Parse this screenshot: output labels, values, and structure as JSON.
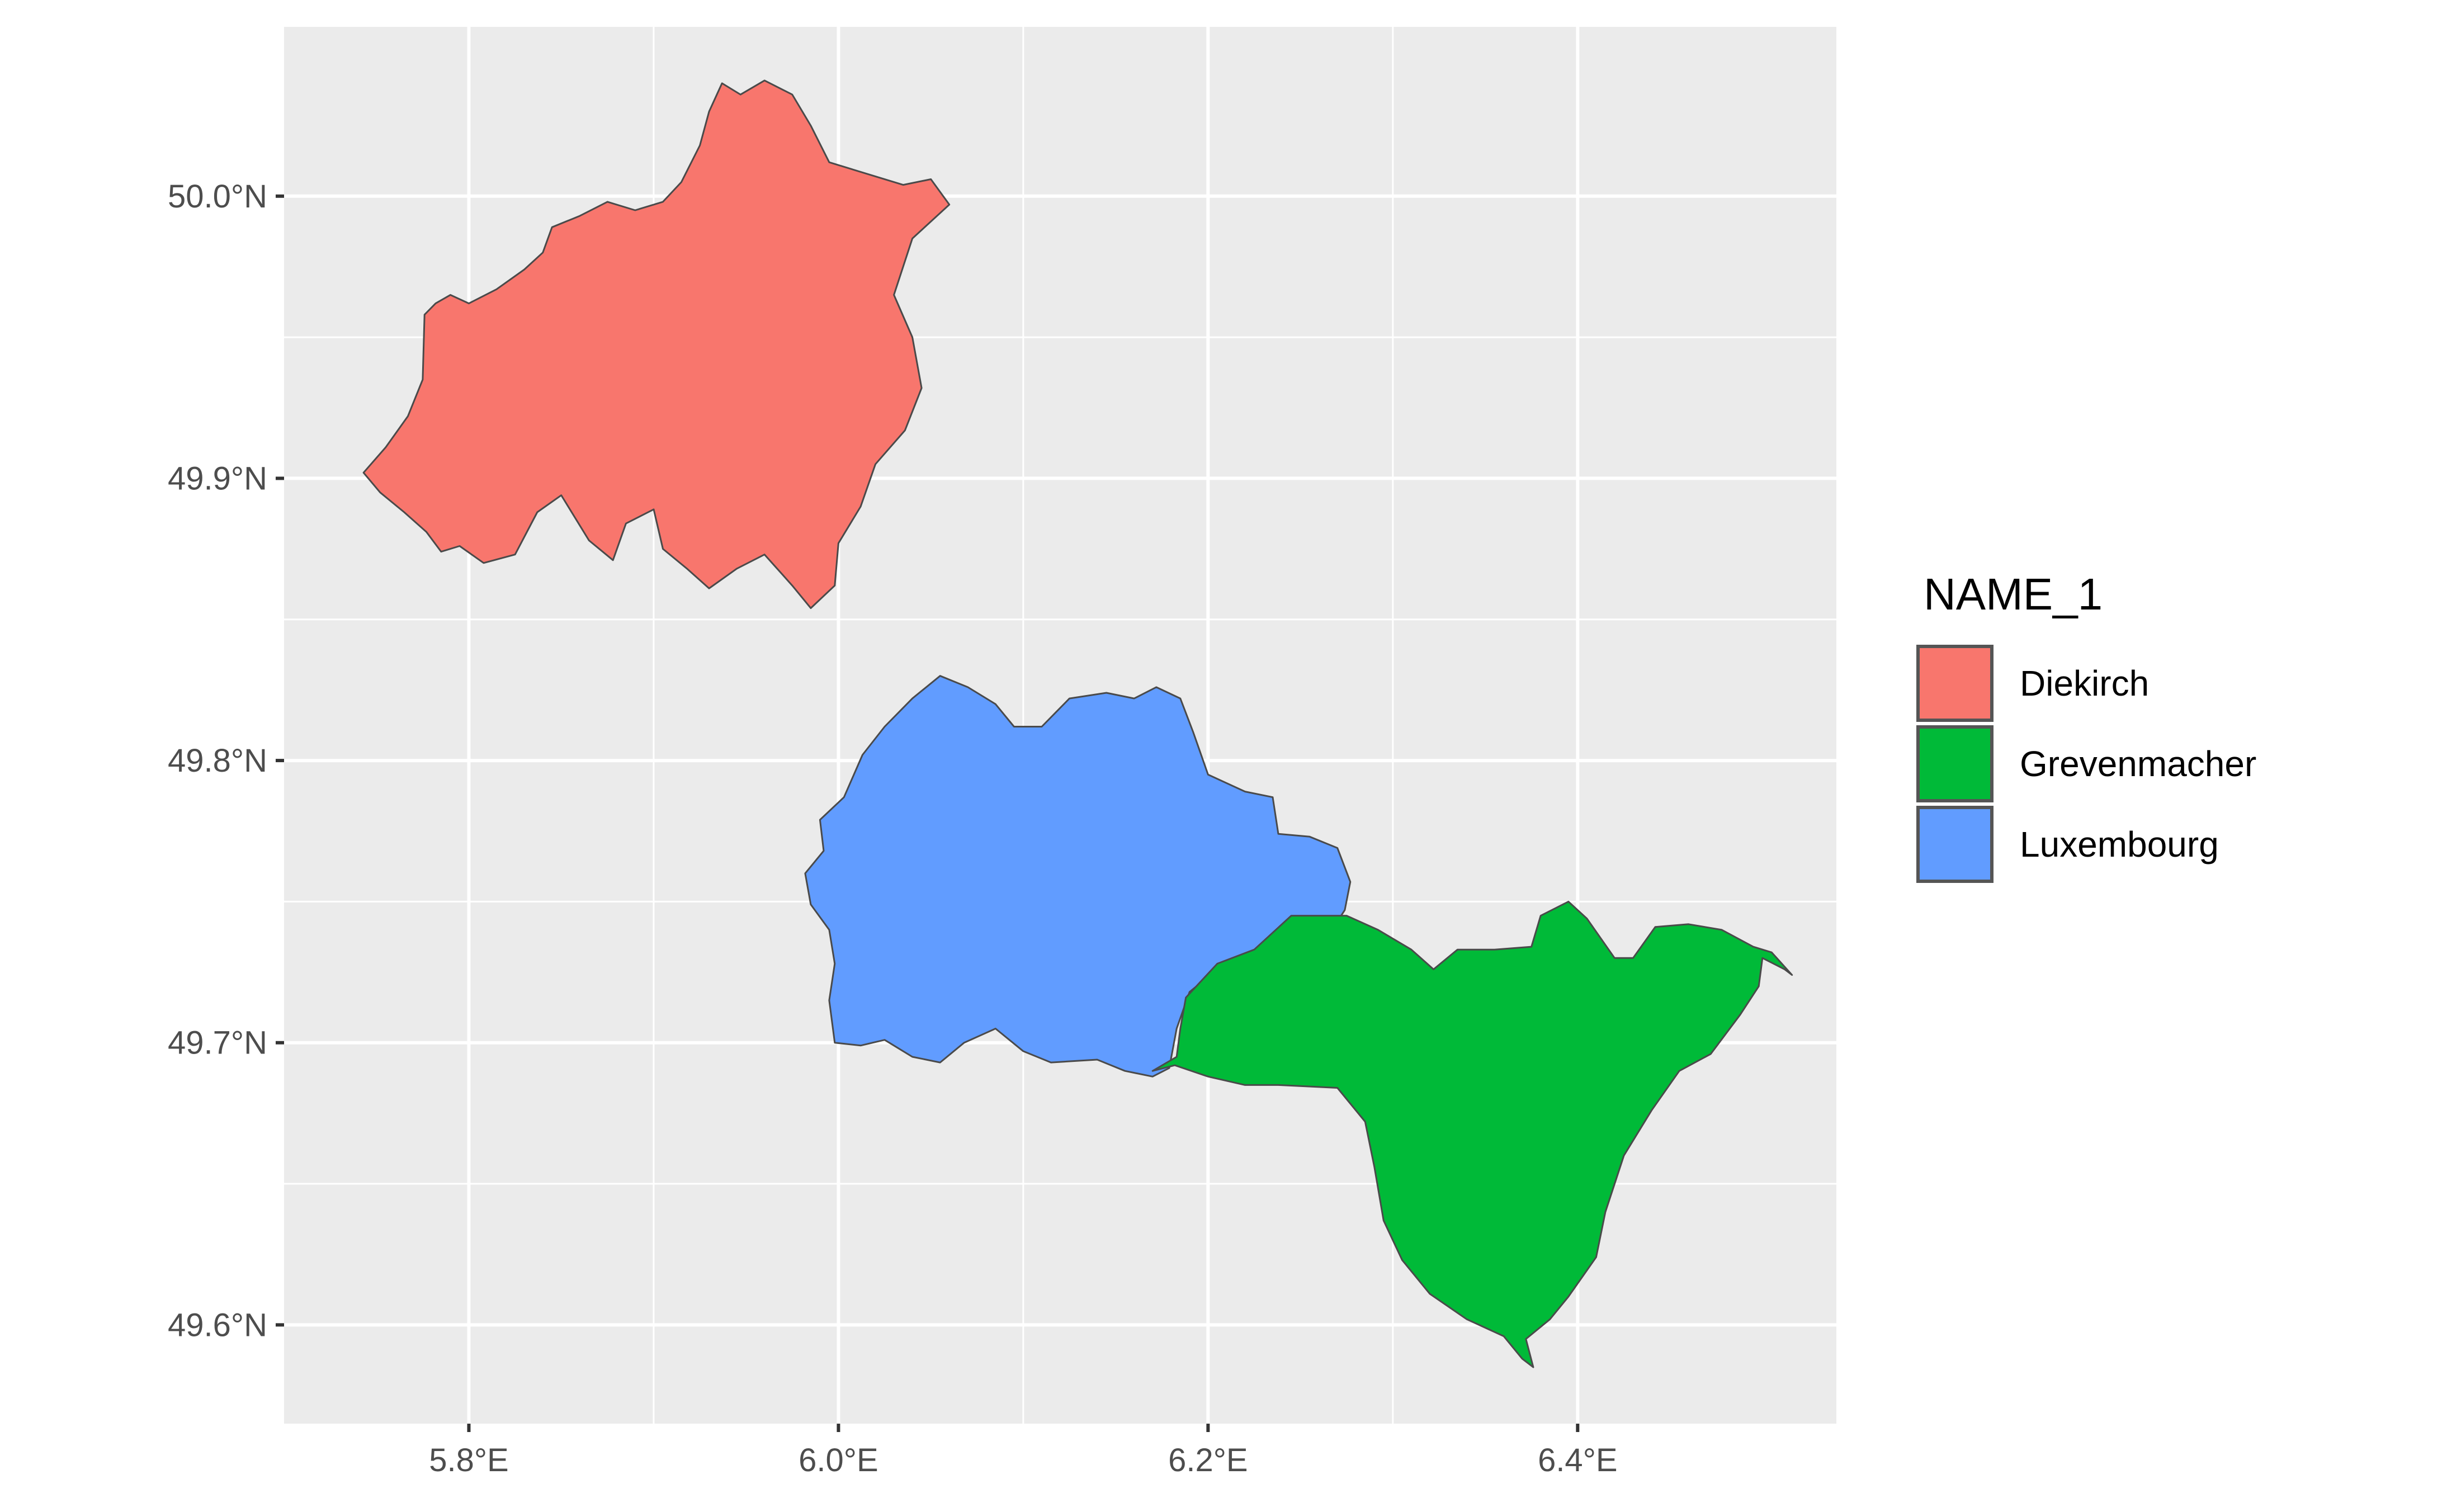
{
  "chart_data": {
    "type": "map",
    "projection": "longitude/latitude",
    "xlim": [
      5.7,
      6.54
    ],
    "ylim": [
      49.565,
      50.06
    ],
    "x_ticks": [
      5.8,
      6.0,
      6.2,
      6.4
    ],
    "y_ticks": [
      49.6,
      49.7,
      49.8,
      49.9,
      50.0
    ],
    "x_tick_labels": [
      "5.8°E",
      "6.0°E",
      "6.2°E",
      "6.4°E"
    ],
    "y_tick_labels": [
      "49.6°N",
      "49.7°N",
      "49.8°N",
      "49.9°N",
      "50.0°N"
    ],
    "grid": true,
    "panel_background": "#ebebeb",
    "legend": {
      "title": "NAME_1",
      "placement": "right",
      "entries": [
        {
          "label": "Diekirch",
          "color": "#F8766D"
        },
        {
          "label": "Grevenmacher",
          "color": "#00BA38"
        },
        {
          "label": "Luxembourg",
          "color": "#619CFF"
        }
      ]
    },
    "regions": [
      {
        "name": "Diekirch",
        "color": "#F8766D",
        "boundary": [
          [
            5.743,
            49.902
          ],
          [
            5.755,
            49.911
          ],
          [
            5.767,
            49.922
          ],
          [
            5.775,
            49.935
          ],
          [
            5.776,
            49.958
          ],
          [
            5.782,
            49.962
          ],
          [
            5.79,
            49.965
          ],
          [
            5.8,
            49.962
          ],
          [
            5.815,
            49.967
          ],
          [
            5.83,
            49.974
          ],
          [
            5.84,
            49.98
          ],
          [
            5.845,
            49.989
          ],
          [
            5.86,
            49.993
          ],
          [
            5.875,
            49.998
          ],
          [
            5.89,
            49.995
          ],
          [
            5.905,
            49.998
          ],
          [
            5.915,
            50.005
          ],
          [
            5.925,
            50.018
          ],
          [
            5.93,
            50.03
          ],
          [
            5.937,
            50.04
          ],
          [
            5.947,
            50.036
          ],
          [
            5.96,
            50.041
          ],
          [
            5.975,
            50.036
          ],
          [
            5.985,
            50.025
          ],
          [
            5.995,
            50.012
          ],
          [
            6.015,
            50.008
          ],
          [
            6.035,
            50.004
          ],
          [
            6.05,
            50.006
          ],
          [
            6.06,
            49.997
          ],
          [
            6.04,
            49.985
          ],
          [
            6.03,
            49.965
          ],
          [
            6.04,
            49.95
          ],
          [
            6.045,
            49.932
          ],
          [
            6.036,
            49.917
          ],
          [
            6.02,
            49.905
          ],
          [
            6.012,
            49.89
          ],
          [
            6.0,
            49.877
          ],
          [
            5.998,
            49.862
          ],
          [
            5.985,
            49.854
          ],
          [
            5.975,
            49.862
          ],
          [
            5.96,
            49.873
          ],
          [
            5.945,
            49.868
          ],
          [
            5.93,
            49.861
          ],
          [
            5.918,
            49.868
          ],
          [
            5.905,
            49.875
          ],
          [
            5.9,
            49.889
          ],
          [
            5.885,
            49.884
          ],
          [
            5.878,
            49.871
          ],
          [
            5.865,
            49.878
          ],
          [
            5.85,
            49.894
          ],
          [
            5.837,
            49.888
          ],
          [
            5.825,
            49.873
          ],
          [
            5.808,
            49.87
          ],
          [
            5.795,
            49.876
          ],
          [
            5.785,
            49.874
          ],
          [
            5.777,
            49.881
          ],
          [
            5.765,
            49.888
          ],
          [
            5.752,
            49.895
          ]
        ]
      },
      {
        "name": "Luxembourg",
        "color": "#619CFF",
        "boundary": [
          [
            5.998,
            49.7
          ],
          [
            5.995,
            49.715
          ],
          [
            5.998,
            49.728
          ],
          [
            5.995,
            49.74
          ],
          [
            5.985,
            49.749
          ],
          [
            5.982,
            49.76
          ],
          [
            5.992,
            49.768
          ],
          [
            5.99,
            49.779
          ],
          [
            6.003,
            49.787
          ],
          [
            6.013,
            49.802
          ],
          [
            6.025,
            49.812
          ],
          [
            6.04,
            49.822
          ],
          [
            6.055,
            49.83
          ],
          [
            6.07,
            49.826
          ],
          [
            6.085,
            49.82
          ],
          [
            6.095,
            49.812
          ],
          [
            6.11,
            49.812
          ],
          [
            6.125,
            49.822
          ],
          [
            6.145,
            49.824
          ],
          [
            6.16,
            49.822
          ],
          [
            6.172,
            49.826
          ],
          [
            6.185,
            49.822
          ],
          [
            6.192,
            49.81
          ],
          [
            6.2,
            49.795
          ],
          [
            6.22,
            49.789
          ],
          [
            6.235,
            49.787
          ],
          [
            6.238,
            49.774
          ],
          [
            6.255,
            49.773
          ],
          [
            6.27,
            49.769
          ],
          [
            6.277,
            49.757
          ],
          [
            6.274,
            49.747
          ],
          [
            6.268,
            49.741
          ],
          [
            6.255,
            49.74
          ],
          [
            6.24,
            49.738
          ],
          [
            6.228,
            49.728
          ],
          [
            6.205,
            49.726
          ],
          [
            6.19,
            49.718
          ],
          [
            6.183,
            49.705
          ],
          [
            6.179,
            49.691
          ],
          [
            6.17,
            49.688
          ],
          [
            6.155,
            49.69
          ],
          [
            6.14,
            49.694
          ],
          [
            6.115,
            49.693
          ],
          [
            6.1,
            49.697
          ],
          [
            6.085,
            49.705
          ],
          [
            6.068,
            49.7
          ],
          [
            6.055,
            49.693
          ],
          [
            6.04,
            49.695
          ],
          [
            6.025,
            49.701
          ],
          [
            6.012,
            49.699
          ]
        ]
      },
      {
        "name": "Grevenmacher",
        "color": "#00BA38",
        "boundary": [
          [
            6.17,
            49.69
          ],
          [
            6.182,
            49.692
          ],
          [
            6.2,
            49.688
          ],
          [
            6.22,
            49.685
          ],
          [
            6.238,
            49.685
          ],
          [
            6.27,
            49.684
          ],
          [
            6.285,
            49.672
          ],
          [
            6.29,
            49.656
          ],
          [
            6.295,
            49.637
          ],
          [
            6.305,
            49.623
          ],
          [
            6.32,
            49.611
          ],
          [
            6.34,
            49.602
          ],
          [
            6.36,
            49.596
          ],
          [
            6.37,
            49.588
          ],
          [
            6.376,
            49.585
          ],
          [
            6.372,
            49.595
          ],
          [
            6.385,
            49.602
          ],
          [
            6.395,
            49.61
          ],
          [
            6.41,
            49.624
          ],
          [
            6.415,
            49.64
          ],
          [
            6.425,
            49.66
          ],
          [
            6.44,
            49.676
          ],
          [
            6.455,
            49.69
          ],
          [
            6.472,
            49.696
          ],
          [
            6.488,
            49.71
          ],
          [
            6.498,
            49.72
          ],
          [
            6.5,
            49.73
          ],
          [
            6.512,
            49.726
          ],
          [
            6.516,
            49.724
          ],
          [
            6.505,
            49.732
          ],
          [
            6.495,
            49.734
          ],
          [
            6.478,
            49.74
          ],
          [
            6.46,
            49.742
          ],
          [
            6.442,
            49.741
          ],
          [
            6.43,
            49.73
          ],
          [
            6.42,
            49.73
          ],
          [
            6.405,
            49.744
          ],
          [
            6.395,
            49.75
          ],
          [
            6.38,
            49.745
          ],
          [
            6.375,
            49.734
          ],
          [
            6.355,
            49.733
          ],
          [
            6.335,
            49.733
          ],
          [
            6.322,
            49.726
          ],
          [
            6.31,
            49.733
          ],
          [
            6.292,
            49.74
          ],
          [
            6.275,
            49.745
          ],
          [
            6.26,
            49.745
          ],
          [
            6.245,
            49.745
          ],
          [
            6.225,
            49.733
          ],
          [
            6.205,
            49.728
          ],
          [
            6.188,
            49.716
          ],
          [
            6.185,
            49.705
          ],
          [
            6.183,
            49.695
          ]
        ]
      }
    ]
  }
}
